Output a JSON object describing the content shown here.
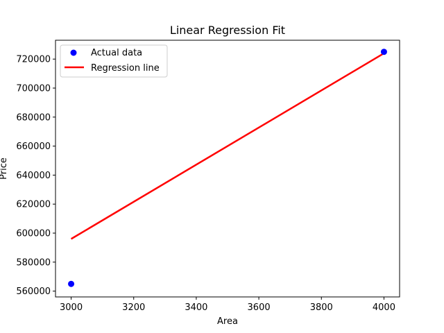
{
  "chart_data": {
    "type": "scatter",
    "title": "Linear Regression Fit",
    "xlabel": "Area",
    "ylabel": "Price",
    "xlim": [
      2950,
      4050
    ],
    "ylim": [
      556000,
      733000
    ],
    "xticks": [
      3000,
      3200,
      3400,
      3600,
      3800,
      4000
    ],
    "yticks": [
      560000,
      580000,
      600000,
      620000,
      640000,
      660000,
      680000,
      700000,
      720000
    ],
    "grid": false,
    "legend_position": "top-left",
    "series": [
      {
        "name": "Actual data",
        "kind": "scatter",
        "color": "#0000ff",
        "x": [
          3000,
          4000
        ],
        "y": [
          565000,
          725000
        ]
      },
      {
        "name": "Regression line",
        "kind": "line",
        "color": "#ff0000",
        "x": [
          3000,
          4000
        ],
        "y": [
          596000,
          724000
        ]
      }
    ]
  }
}
